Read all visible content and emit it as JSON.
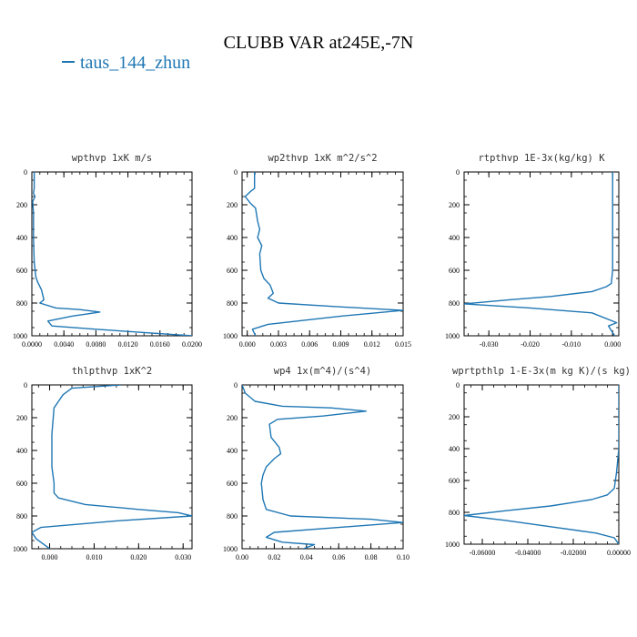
{
  "title": "CLUBB VAR at245E,-7N",
  "legend": {
    "label": "taus_144_zhun",
    "color": "#1f77b4"
  },
  "chart_data": [
    {
      "type": "line",
      "title": "wpthvp  1xK m/s",
      "xlim": [
        0,
        0.02
      ],
      "ylim": [
        1000,
        0
      ],
      "ylabel_ticks": [
        0,
        200,
        400,
        600,
        800,
        1000
      ],
      "xticks": [
        0,
        0.004,
        0.008,
        0.012,
        0.016,
        0.02
      ],
      "xtick_labels": [
        "0.0000",
        "0.0040",
        "0.0080",
        "0.0120",
        "0.0160",
        "0.0200"
      ],
      "series": [
        {
          "x": [
            0.0003,
            0.0003,
            0.0002,
            0.0004,
            0.0001,
            0.0002,
            0.0002,
            0.0003,
            0.0005,
            0.0007,
            0.0012,
            0.0015,
            0.001,
            0.003,
            0.006,
            0.0085,
            0.005,
            0.002,
            0.0025,
            0.008,
            0.014,
            0.02
          ],
          "y": [
            0,
            100,
            130,
            150,
            180,
            250,
            400,
            550,
            640,
            670,
            720,
            780,
            800,
            830,
            840,
            855,
            880,
            910,
            940,
            960,
            980,
            1000
          ]
        }
      ]
    },
    {
      "type": "line",
      "title": "wp2thvp  1xK m^2/s^2",
      "xlim": [
        -0.0005,
        0.015
      ],
      "ylim": [
        1000,
        0
      ],
      "ylabel_ticks": [
        0,
        200,
        400,
        600,
        800,
        1000
      ],
      "xticks": [
        0,
        0.003,
        0.006,
        0.009,
        0.012,
        0.015
      ],
      "xtick_labels": [
        "0.000",
        "0.003",
        "0.006",
        "0.009",
        "0.012",
        "0.015"
      ],
      "series": [
        {
          "x": [
            0.0007,
            0.0007,
            0.0003,
            -0.0002,
            0.0003,
            0.0008,
            0.001,
            0.0012,
            0.001,
            0.0014,
            0.0012,
            0.0013,
            0.0016,
            0.0022,
            0.0025,
            0.002,
            0.003,
            0.008,
            0.015,
            0.009,
            0.002,
            0.0005,
            0.0008
          ],
          "y": [
            0,
            100,
            120,
            150,
            190,
            220,
            300,
            350,
            400,
            450,
            500,
            600,
            650,
            690,
            740,
            770,
            800,
            820,
            845,
            880,
            930,
            960,
            1000
          ]
        }
      ]
    },
    {
      "type": "line",
      "title": "rtpthvp  1E-3x(kg/kg) K",
      "xlim": [
        -0.036,
        0.0015
      ],
      "ylim": [
        1000,
        0
      ],
      "ylabel_ticks": [
        0,
        200,
        400,
        600,
        800,
        1000
      ],
      "xticks": [
        -0.03,
        -0.02,
        -0.01,
        0.0
      ],
      "xtick_labels": [
        "-0.030",
        "-0.020",
        "-0.010",
        "0.000"
      ],
      "series": [
        {
          "x": [
            0.0,
            0.0,
            0.0,
            -0.0003,
            -0.0015,
            -0.005,
            -0.015,
            -0.025,
            -0.036,
            -0.02,
            -0.005,
            0.001,
            -0.001,
            -0.0005,
            0.0005
          ],
          "y": [
            0,
            300,
            600,
            680,
            700,
            730,
            760,
            780,
            805,
            830,
            860,
            920,
            940,
            960,
            1000
          ]
        }
      ]
    },
    {
      "type": "line",
      "title": "thlpthvp  1xK^2",
      "xlim": [
        -0.004,
        0.032
      ],
      "ylim": [
        1000,
        0
      ],
      "ylabel_ticks": [
        0,
        200,
        400,
        600,
        800,
        1000
      ],
      "xticks": [
        0,
        0.01,
        0.02,
        0.03
      ],
      "xtick_labels": [
        "0.000",
        "0.010",
        "0.020",
        "0.030"
      ],
      "series": [
        {
          "x": [
            0.016,
            0.005,
            0.003,
            0.002,
            0.001,
            0.0005,
            0.0005,
            0.001,
            0.001,
            0.002,
            0.008,
            0.02,
            0.029,
            0.032,
            0.015,
            -0.002,
            -0.004,
            -0.003,
            0.0
          ],
          "y": [
            0,
            20,
            60,
            100,
            140,
            300,
            500,
            600,
            660,
            690,
            730,
            760,
            780,
            800,
            830,
            870,
            900,
            940,
            1000
          ]
        }
      ]
    },
    {
      "type": "line",
      "title": "wp4  1x(m^4)/(s^4)",
      "xlim": [
        0,
        0.1
      ],
      "ylim": [
        1000,
        0
      ],
      "ylabel_ticks": [
        0,
        200,
        400,
        600,
        800,
        1000
      ],
      "xticks": [
        0,
        0.02,
        0.04,
        0.06,
        0.08,
        0.1
      ],
      "xtick_labels": [
        "0.00",
        "0.02",
        "0.04",
        "0.06",
        "0.08",
        "0.10"
      ],
      "series": [
        {
          "x": [
            0.0,
            0.002,
            0.008,
            0.025,
            0.055,
            0.077,
            0.05,
            0.022,
            0.017,
            0.018,
            0.023,
            0.024,
            0.02,
            0.015,
            0.013,
            0.012,
            0.013,
            0.015,
            0.03,
            0.08,
            0.1,
            0.06,
            0.02,
            0.015,
            0.025,
            0.045,
            0.038
          ],
          "y": [
            0,
            50,
            100,
            130,
            140,
            160,
            190,
            210,
            240,
            320,
            380,
            420,
            450,
            500,
            550,
            600,
            700,
            760,
            800,
            820,
            840,
            870,
            900,
            930,
            960,
            975,
            1000
          ]
        }
      ]
    },
    {
      "type": "line",
      "title": "wprtpthlp  1-E-3x(m kg K)/(s kg)",
      "xlim": [
        -0.068,
        0.0
      ],
      "ylim": [
        1000,
        0
      ],
      "ylabel_ticks": [
        0,
        200,
        400,
        600,
        800,
        1000
      ],
      "xticks": [
        -0.06,
        -0.04,
        -0.02,
        0.0
      ],
      "xtick_labels": [
        "-0.06000",
        "-0.04000",
        "-0.02000",
        "0.00000"
      ],
      "series": [
        {
          "x": [
            0.0,
            0.0,
            -0.001,
            -0.002,
            -0.005,
            -0.012,
            -0.03,
            -0.05,
            -0.068,
            -0.05,
            -0.03,
            -0.01,
            -0.002,
            0.0
          ],
          "y": [
            0,
            400,
            550,
            650,
            690,
            720,
            760,
            790,
            820,
            850,
            890,
            930,
            960,
            1000
          ]
        }
      ]
    }
  ]
}
